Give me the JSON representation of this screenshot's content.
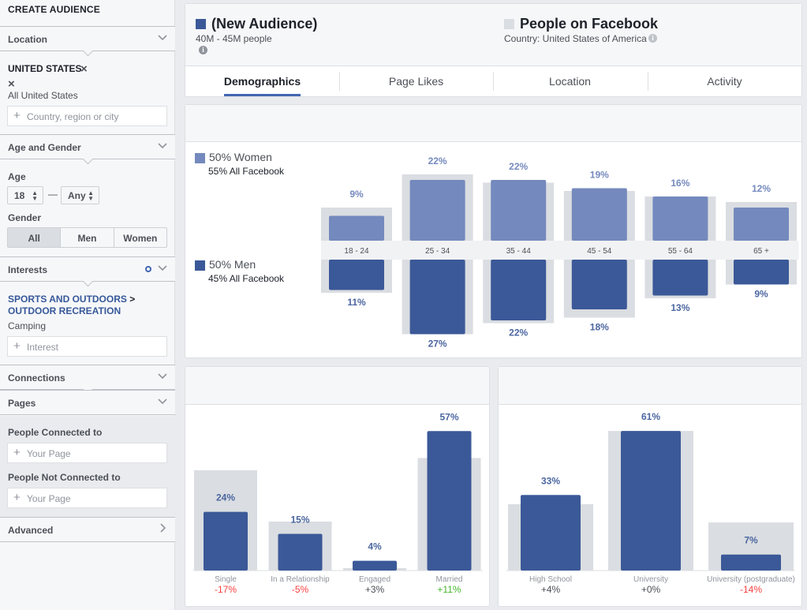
{
  "sidebar": {
    "title": "CREATE AUDIENCE",
    "location": {
      "header": "Location",
      "selected": "UNITED STATES",
      "remove_symbol": "×",
      "scope": "All United States",
      "placeholder": "Country, region or city"
    },
    "age_gender": {
      "header": "Age and Gender",
      "age_label": "Age",
      "age_min": "18",
      "age_sep": "—",
      "age_max": "Any",
      "gender_label": "Gender",
      "gender_options": [
        "All",
        "Men",
        "Women"
      ],
      "gender_selected": "All"
    },
    "interests": {
      "header": "Interests",
      "path_1": "SPORTS AND OUTDOORS",
      "path_sep": ">",
      "path_2": "OUTDOOR RECREATION",
      "item": "Camping",
      "placeholder": "Interest"
    },
    "connections_header": "Connections",
    "pages": {
      "header": "Pages",
      "connected_label": "People Connected to",
      "connected_placeholder": "Your Page",
      "not_connected_label": "People Not Connected to",
      "not_connected_placeholder": "Your Page"
    },
    "advanced_header": "Advanced"
  },
  "header": {
    "audience_name": "(New Audience)",
    "audience_size": "40M - 45M people",
    "audience_color": "#3b5998",
    "compare_name": "People on Facebook",
    "compare_sub": "Country: United States of America",
    "compare_color": "#dadde1",
    "tabs": [
      "Demographics",
      "Page Likes",
      "Location",
      "Activity"
    ],
    "active_tab": "Demographics"
  },
  "colors": {
    "men": "#3b5998",
    "women": "#7489bd",
    "baseline": "#dadde1",
    "positive": "#42b72a",
    "negative": "#fa3e3e",
    "label": "#4b66a0"
  },
  "chart_data": [
    {
      "type": "bar",
      "title": "",
      "categories": [
        "18 - 24",
        "25 - 34",
        "35 - 44",
        "45 - 54",
        "55 - 64",
        "65 +"
      ],
      "series": [
        {
          "name": "50% Women",
          "subtitle": "55% All Facebook",
          "values": [
            9,
            22,
            22,
            19,
            16,
            12
          ],
          "value_labels": [
            "9%",
            "22%",
            "22%",
            "19%",
            "16%",
            "12%"
          ]
        },
        {
          "name": "50% Men",
          "subtitle": "45% All Facebook",
          "values": [
            11,
            27,
            22,
            18,
            13,
            9
          ],
          "value_labels": [
            "11%",
            "27%",
            "22%",
            "18%",
            "13%",
            "9%"
          ]
        }
      ],
      "baseline_women": [
        12,
        24,
        21,
        18,
        16,
        14
      ],
      "baseline_men": [
        12,
        27,
        23,
        21,
        14,
        9
      ]
    },
    {
      "type": "bar",
      "title": "",
      "categories": [
        "Single",
        "In a Relationship",
        "Engaged",
        "Married"
      ],
      "values": [
        24,
        15,
        4,
        57
      ],
      "value_labels": [
        "24%",
        "15%",
        "4%",
        "57%"
      ],
      "baseline": [
        41,
        20,
        1,
        46
      ],
      "diff_labels": [
        "-17%",
        "-5%",
        "+3%",
        "+11%"
      ]
    },
    {
      "type": "bar",
      "title": "",
      "categories": [
        "High School",
        "University",
        "University (postgraduate)"
      ],
      "values": [
        33,
        61,
        7
      ],
      "value_labels": [
        "33%",
        "61%",
        "7%"
      ],
      "baseline": [
        29,
        61,
        21
      ],
      "diff_labels": [
        "+4%",
        "+0%",
        "-14%"
      ]
    }
  ]
}
